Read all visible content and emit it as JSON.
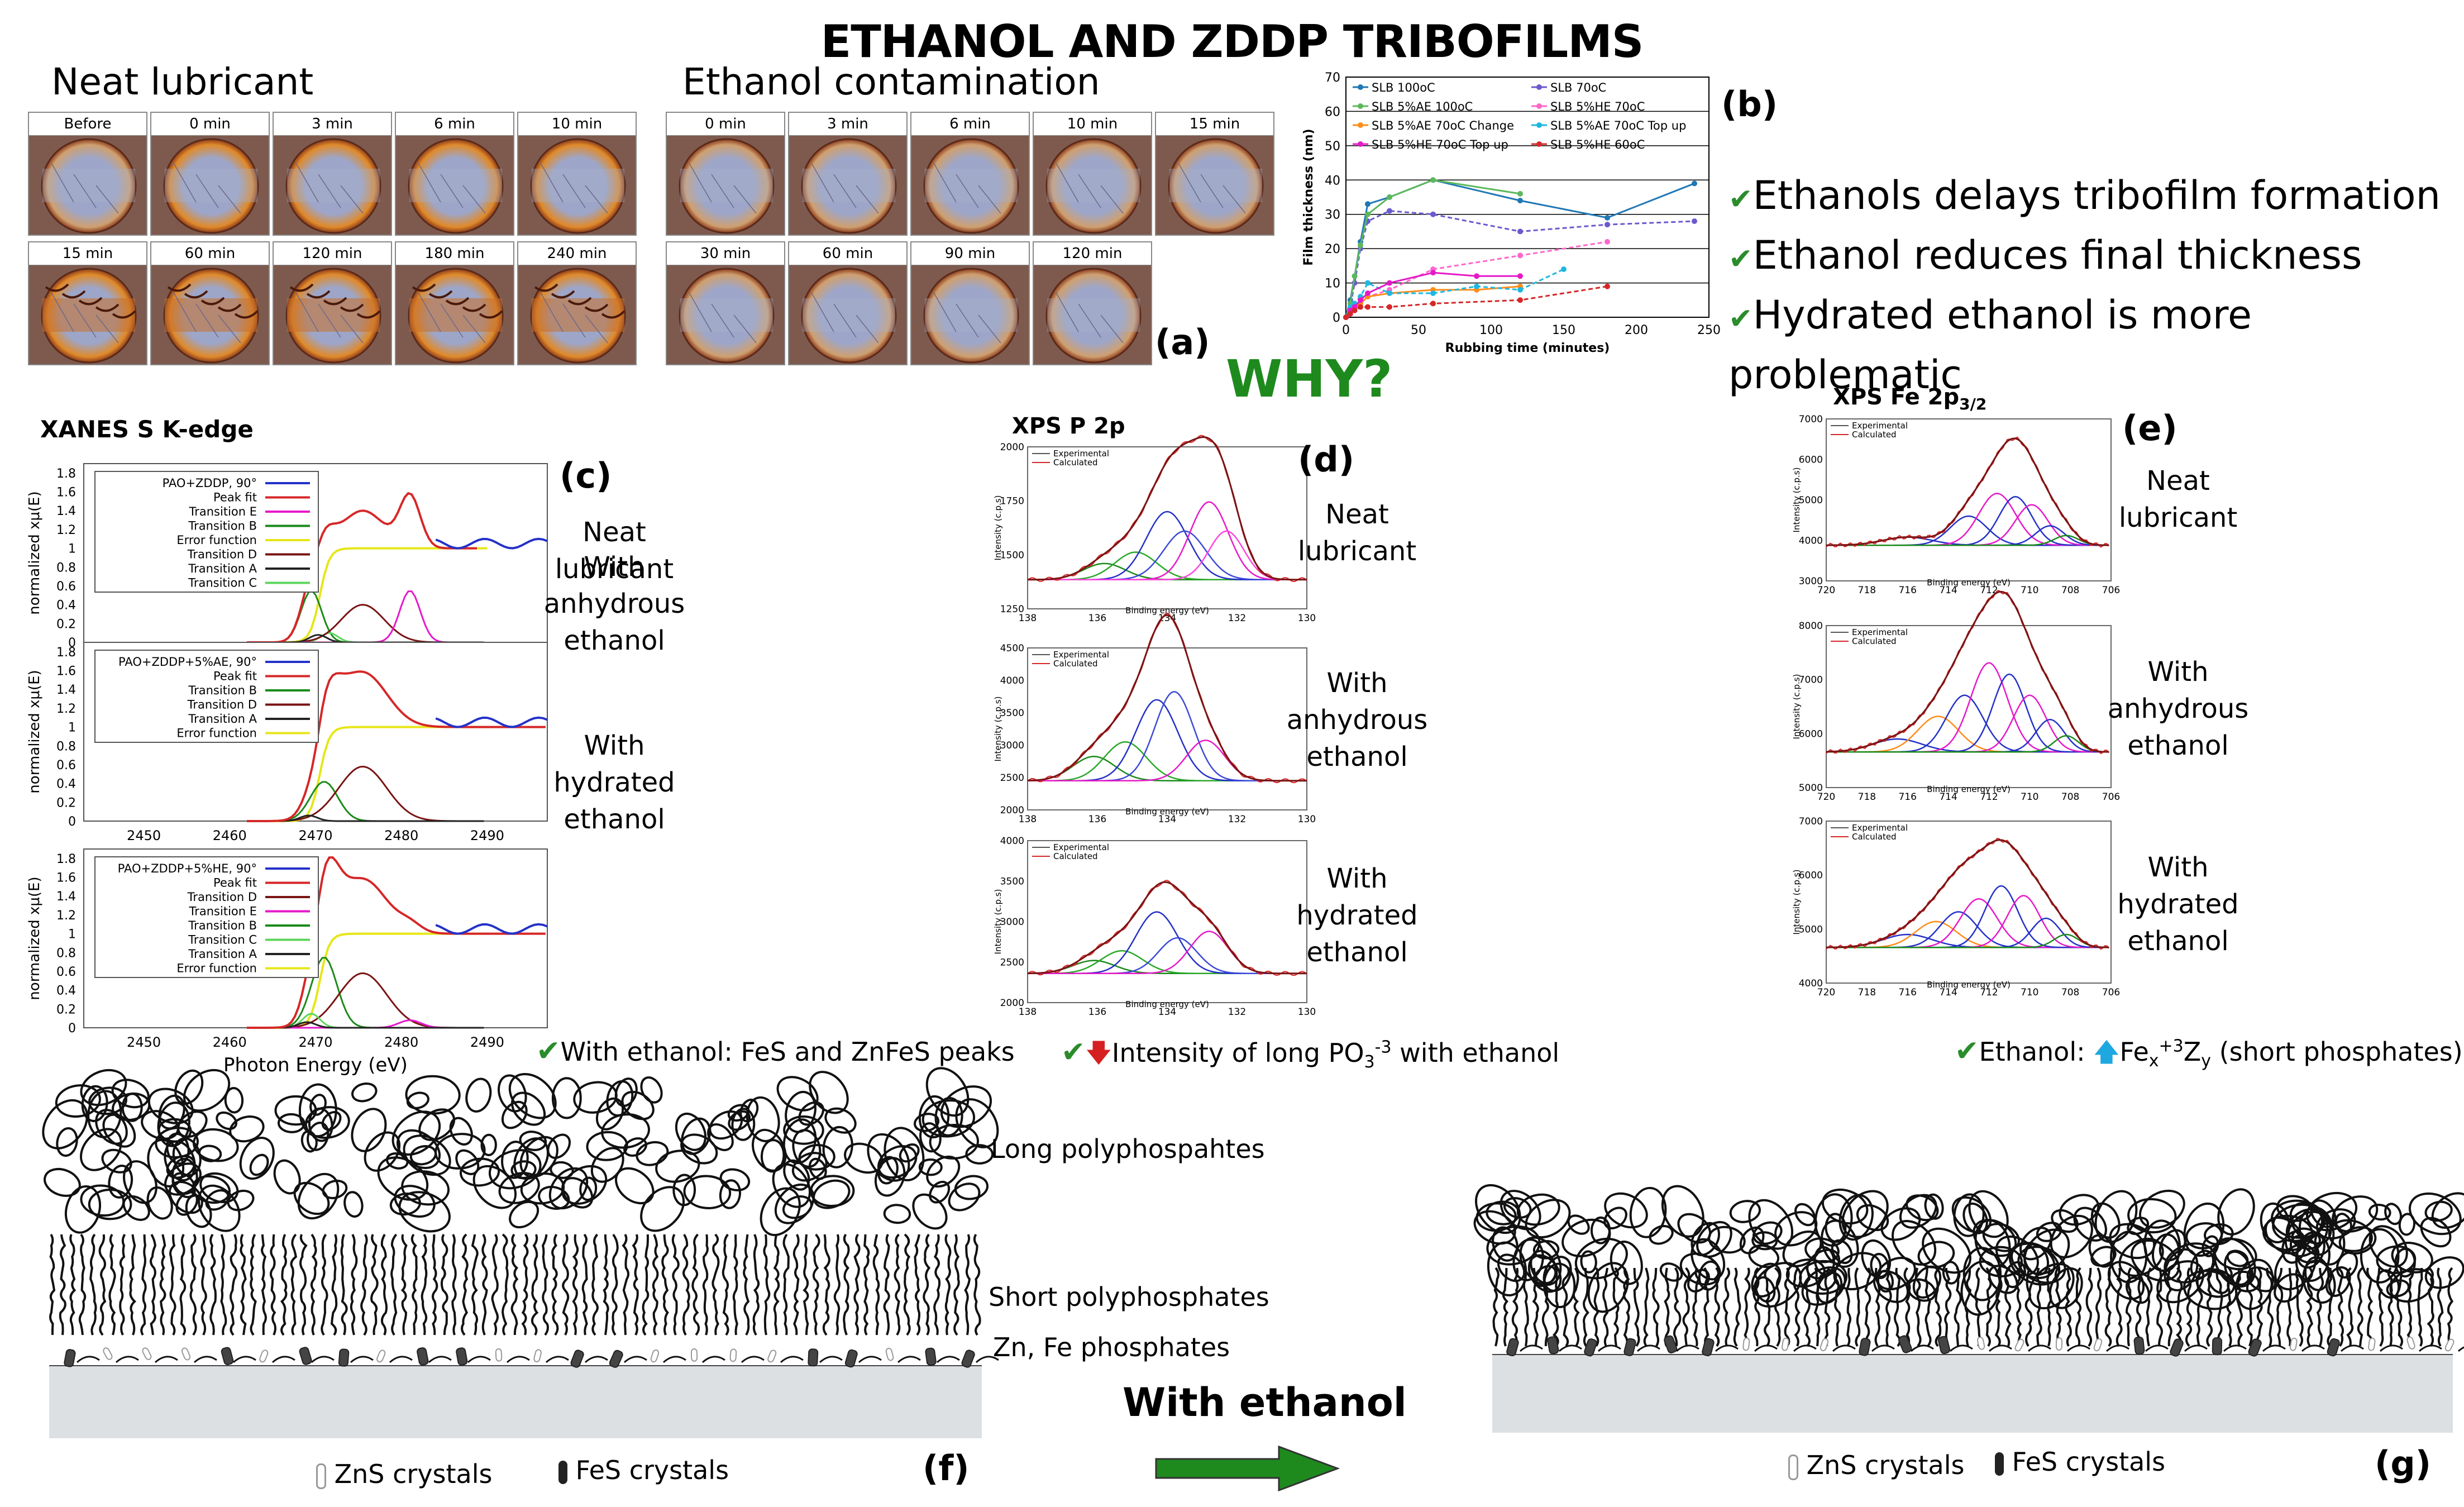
{
  "title": "ETHANOL AND ZDDP TRIBOFILMS",
  "neat_heading": "Neat lubricant",
  "ethanol_heading": "Ethanol contamination",
  "neat_times_row1": [
    "Before",
    "0 min",
    "3 min",
    "6 min",
    "10 min"
  ],
  "neat_times_row2": [
    "15 min",
    "60 min",
    "120 min",
    "180 min",
    "240 min"
  ],
  "eth_times_row1": [
    "0 min",
    "3 min",
    "6 min",
    "10 min",
    "15 min"
  ],
  "eth_times_row2": [
    "30 min",
    "60 min",
    "90 min",
    "120 min"
  ],
  "panel_labels": {
    "a": "(a)",
    "b": "(b)",
    "c": "(c)",
    "d": "(d)",
    "e": "(e)",
    "f": "(f)",
    "g": "(g)"
  },
  "why": "WHY?",
  "bullets": [
    "Ethanols delays tribofilm formation",
    "Ethanol reduces final thickness",
    "Hydrated ethanol is more problematic"
  ],
  "check_mark": "✔",
  "chart_b": {
    "type": "line",
    "xlabel": "Rubbing time (minutes)",
    "ylabel": "Film thickness (nm)",
    "xlim": [
      0,
      250
    ],
    "ylim": [
      0,
      70
    ],
    "xticks": [
      0,
      50,
      100,
      150,
      200,
      250
    ],
    "yticks": [
      0,
      10,
      20,
      30,
      40,
      50,
      60,
      70
    ],
    "series": [
      {
        "name": "SLB 100oC",
        "color": "#1f77b4",
        "x": [
          0,
          3,
          6,
          10,
          15,
          30,
          60,
          120,
          180,
          240
        ],
        "y": [
          0,
          5,
          12,
          22,
          33,
          35,
          40,
          34,
          29,
          39
        ]
      },
      {
        "name": "SLB 70oC",
        "color": "#6a5acd",
        "x": [
          0,
          3,
          6,
          10,
          15,
          30,
          60,
          120,
          180,
          240
        ],
        "y": [
          0,
          3,
          10,
          20,
          28,
          31,
          30,
          25,
          27,
          28
        ]
      },
      {
        "name": "SLB 5%AE 100oC",
        "color": "#5cb85c",
        "x": [
          0,
          3,
          6,
          10,
          15,
          30,
          60,
          120
        ],
        "y": [
          0,
          4,
          12,
          21,
          30,
          35,
          40,
          36
        ]
      },
      {
        "name": "SLB 5%HE 70oC",
        "color": "#ff66cc",
        "x": [
          0,
          3,
          6,
          10,
          15,
          30,
          60,
          120,
          180
        ],
        "y": [
          0,
          2,
          4,
          5,
          6,
          8,
          14,
          18,
          22
        ]
      },
      {
        "name": "SLB 5%AE 70oC  Change",
        "color": "#ff8c1a",
        "x": [
          0,
          3,
          6,
          10,
          15,
          30,
          60,
          90,
          120
        ],
        "y": [
          0,
          2,
          3,
          4,
          6,
          7,
          8,
          8,
          9
        ]
      },
      {
        "name": "SLB 5%AE 70oC  Top up",
        "color": "#1fb7e0",
        "x": [
          0,
          3,
          6,
          10,
          15,
          30,
          60,
          90,
          120,
          150
        ],
        "y": [
          0,
          3,
          4,
          6,
          10,
          7,
          7,
          9,
          8,
          14
        ]
      },
      {
        "name": "SLB 5%HE 70oC Top up",
        "color": "#e619c9",
        "x": [
          0,
          3,
          6,
          10,
          15,
          30,
          60,
          90,
          120
        ],
        "y": [
          0,
          2,
          3,
          5,
          7,
          10,
          13,
          12,
          12
        ]
      },
      {
        "name": "SLB  5%HE 60oC",
        "color": "#d62728",
        "x": [
          0,
          3,
          6,
          10,
          15,
          30,
          60,
          120,
          180
        ],
        "y": [
          0,
          1,
          2,
          3,
          3,
          3,
          4,
          5,
          9
        ]
      }
    ]
  },
  "xanes_title": "XANES S K-edge",
  "xanes_ylabel": "normalized xμ(E)",
  "xanes_xlabel": "Photon Energy (eV)",
  "xanes_xticks": [
    "2450",
    "2460",
    "2470",
    "2480",
    "2490"
  ],
  "xanes_yticks": [
    "0",
    "0.2",
    "0.4",
    "0.6",
    "0.8",
    "1",
    "1.2",
    "1.4",
    "1.6",
    "1.8"
  ],
  "xanes_panels": [
    {
      "legend": [
        "PAO+ZDDP, 90°",
        "Peak fit",
        "Transition E",
        "Transition B",
        "Error function",
        "Transition D",
        "Transition A",
        "Transition C"
      ],
      "colors": [
        "#2431c8",
        "#d62728",
        "#e619c9",
        "#1a8a1a",
        "#e6e619",
        "#7a1414",
        "#222222",
        "#5cd65c"
      ],
      "note": [
        "Neat",
        "lubricant"
      ]
    },
    {
      "legend": [
        "PAO+ZDDP+5%AE, 90°",
        "Peak fit",
        "Transition B",
        "Transition D",
        "Transition A",
        "Error function"
      ],
      "colors": [
        "#2431c8",
        "#d62728",
        "#1a8a1a",
        "#7a1414",
        "#222222",
        "#e6e619"
      ],
      "note": [
        "With",
        "anhydrous",
        "ethanol"
      ]
    },
    {
      "legend": [
        "PAO+ZDDP+5%HE, 90°",
        "Peak fit",
        "Transition D",
        "Transition E",
        "Transition B",
        "Transition C",
        "Transition A",
        "Error function"
      ],
      "colors": [
        "#2431c8",
        "#d62728",
        "#7a1414",
        "#e619c9",
        "#1a8a1a",
        "#5cd65c",
        "#222222",
        "#e6e619"
      ],
      "note": [
        "With",
        "hydrated",
        "ethanol"
      ]
    }
  ],
  "xps_p_title": "XPS P 2p",
  "xps_p_xlabel": "Binding energy (eV)",
  "xps_p_ylabel": "Intensity (c.p.s)",
  "xps_p_xticks": [
    "138",
    "136",
    "134",
    "132",
    "130"
  ],
  "xps_p_panels": [
    {
      "yticks": [
        "1250",
        "1500",
        "1750",
        "2000"
      ],
      "note": [
        "Neat",
        "lubricant"
      ]
    },
    {
      "yticks": [
        "2000",
        "2500",
        "3000",
        "3500",
        "4000",
        "4500"
      ],
      "note": [
        "With",
        "anhydrous",
        "ethanol"
      ]
    },
    {
      "yticks": [
        "2000",
        "2500",
        "3000",
        "3500",
        "4000"
      ],
      "note": [
        "With",
        "hydrated",
        "ethanol"
      ]
    }
  ],
  "xps_legend": [
    "Experimental",
    "Calculated"
  ],
  "xps_fe_title": "XPS Fe 2p",
  "xps_fe_sub": "3/2",
  "xps_fe_xticks": [
    "720",
    "718",
    "716",
    "714",
    "712",
    "710",
    "708",
    "706"
  ],
  "xps_fe_panels": [
    {
      "yticks": [
        "3000",
        "4000",
        "5000",
        "6000",
        "7000"
      ],
      "note": [
        "Neat",
        "lubricant"
      ]
    },
    {
      "yticks": [
        "5000",
        "6000",
        "7000",
        "8000"
      ],
      "note": [
        "With",
        "anhydrous",
        "ethanol"
      ]
    },
    {
      "yticks": [
        "4000",
        "5000",
        "6000",
        "7000"
      ],
      "note": [
        "With",
        "hydrated",
        "ethanol"
      ]
    }
  ],
  "finding_c": "With ethanol: FeS and ZnFeS peaks",
  "finding_d_pre": "Intensity of  long PO",
  "finding_d_sub": "3",
  "finding_d_sup": "-3",
  "finding_d_post": " with ethanol",
  "finding_e_pre": "Ethanol: ",
  "finding_e_fe": "Fe",
  "finding_e_x": "x",
  "finding_e_p3": "+3",
  "finding_e_z": "Z",
  "finding_e_y": "y",
  "finding_e_post": "  (short phosphates)",
  "layer_labels": [
    "Long polyphospahtes",
    "Short polyphosphates",
    "Zn, Fe phosphates"
  ],
  "with_ethanol": "With ethanol",
  "zns_label": "ZnS crystals",
  "fes_label": "FeS crystals"
}
